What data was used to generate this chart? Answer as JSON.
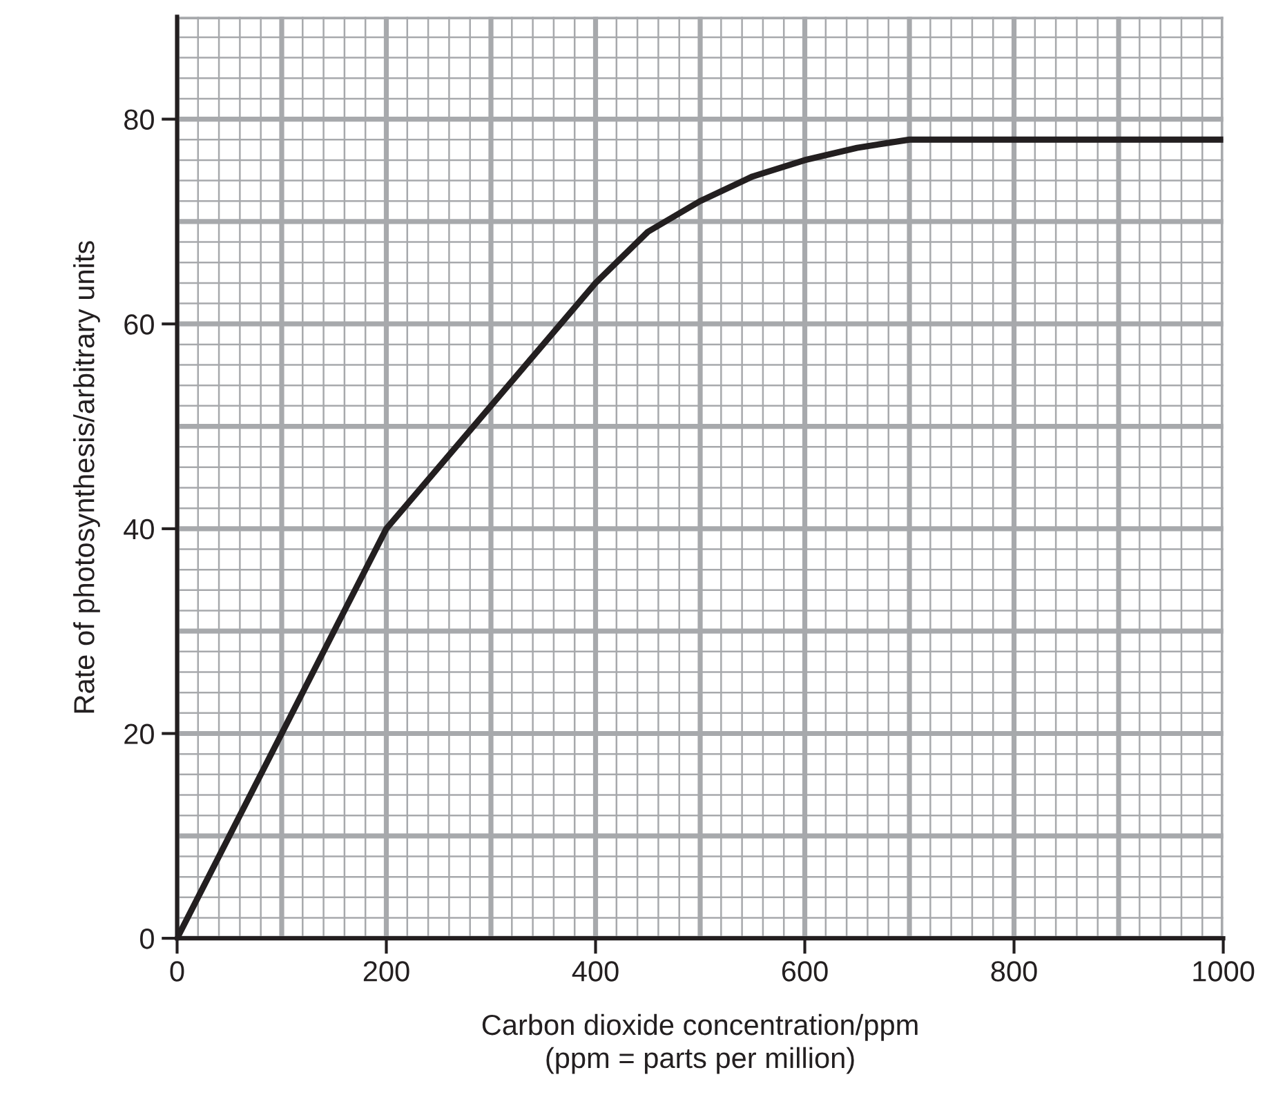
{
  "chart_data": {
    "type": "line",
    "xlabel": "Carbon dioxide concentration/ppm\n(ppm = parts per million)",
    "ylabel": "Rate of photosynthesis/arbitrary units",
    "x": [
      0,
      100,
      200,
      300,
      350,
      400,
      450,
      500,
      550,
      600,
      650,
      700,
      1000
    ],
    "series": [
      {
        "color": "#231f20",
        "values": [
          0,
          20,
          40,
          52,
          58,
          64,
          69,
          72,
          74.4,
          76,
          77.2,
          78,
          78
        ]
      }
    ],
    "xlim": [
      0,
      1000
    ],
    "ylim": [
      0,
      90
    ],
    "xticks": [
      0,
      200,
      400,
      600,
      800,
      1000
    ],
    "yticks": [
      0,
      20,
      40,
      60,
      80
    ],
    "grid": true,
    "marker": "none",
    "line_style": "solid"
  }
}
